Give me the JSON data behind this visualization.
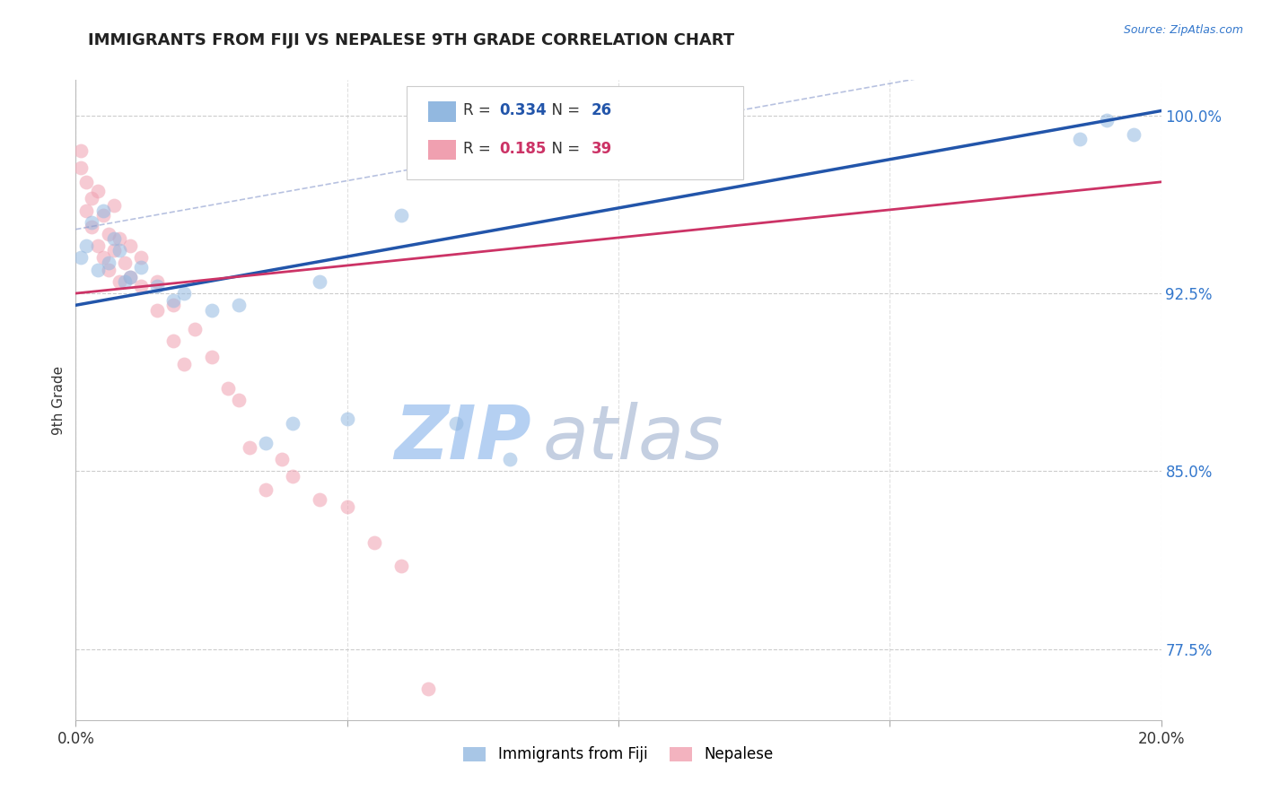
{
  "title": "IMMIGRANTS FROM FIJI VS NEPALESE 9TH GRADE CORRELATION CHART",
  "source_text": "Source: ZipAtlas.com",
  "ylabel": "9th Grade",
  "xlim": [
    0.0,
    0.2
  ],
  "ylim": [
    0.745,
    1.015
  ],
  "yticks": [
    0.775,
    0.85,
    0.925,
    1.0
  ],
  "ytick_labels": [
    "77.5%",
    "85.0%",
    "92.5%",
    "100.0%"
  ],
  "xticks": [
    0.0,
    0.05,
    0.1,
    0.15,
    0.2
  ],
  "xtick_labels": [
    "0.0%",
    "",
    "",
    "",
    "20.0%"
  ],
  "fiji_color": "#92b8e0",
  "nepalese_color": "#f0a0b0",
  "fiji_line_color": "#2255aa",
  "nepalese_line_color": "#cc3366",
  "fiji_line_color_dash": "#8899cc",
  "legend_fiji_label": "Immigrants from Fiji",
  "legend_nepalese_label": "Nepalese",
  "fiji_R": "0.334",
  "fiji_N": "26",
  "nepalese_R": "0.185",
  "nepalese_N": "39",
  "fiji_scatter_x": [
    0.001,
    0.002,
    0.003,
    0.004,
    0.005,
    0.006,
    0.007,
    0.008,
    0.009,
    0.01,
    0.012,
    0.015,
    0.018,
    0.02,
    0.025,
    0.03,
    0.035,
    0.04,
    0.045,
    0.05,
    0.06,
    0.07,
    0.08,
    0.185,
    0.19,
    0.195
  ],
  "fiji_scatter_y": [
    0.94,
    0.945,
    0.955,
    0.935,
    0.96,
    0.938,
    0.948,
    0.943,
    0.93,
    0.932,
    0.936,
    0.928,
    0.922,
    0.925,
    0.918,
    0.92,
    0.862,
    0.87,
    0.93,
    0.872,
    0.958,
    0.87,
    0.855,
    0.99,
    0.998,
    0.992
  ],
  "nepalese_scatter_x": [
    0.001,
    0.001,
    0.002,
    0.002,
    0.003,
    0.003,
    0.004,
    0.004,
    0.005,
    0.005,
    0.006,
    0.006,
    0.007,
    0.007,
    0.008,
    0.008,
    0.009,
    0.01,
    0.01,
    0.012,
    0.012,
    0.015,
    0.015,
    0.018,
    0.018,
    0.02,
    0.022,
    0.025,
    0.028,
    0.03,
    0.032,
    0.035,
    0.038,
    0.04,
    0.045,
    0.05,
    0.055,
    0.06,
    0.065
  ],
  "nepalese_scatter_y": [
    0.978,
    0.985,
    0.972,
    0.96,
    0.965,
    0.953,
    0.968,
    0.945,
    0.958,
    0.94,
    0.95,
    0.935,
    0.962,
    0.943,
    0.948,
    0.93,
    0.938,
    0.945,
    0.932,
    0.94,
    0.928,
    0.93,
    0.918,
    0.92,
    0.905,
    0.895,
    0.91,
    0.898,
    0.885,
    0.88,
    0.86,
    0.842,
    0.855,
    0.848,
    0.838,
    0.835,
    0.82,
    0.81,
    0.758
  ],
  "background_color": "#ffffff",
  "grid_color": "#cccccc",
  "watermark_zip": "ZIP",
  "watermark_atlas": "atlas",
  "watermark_color_zip": "#c8d8f0",
  "watermark_color_atlas": "#d0d8e8",
  "dot_size": 130,
  "dot_alpha": 0.55
}
